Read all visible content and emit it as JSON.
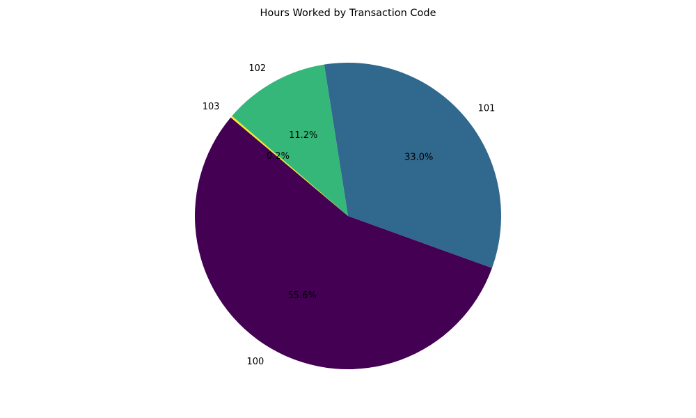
{
  "chart_data": {
    "type": "pie",
    "title": "Hours Worked by Transaction Code",
    "categories": [
      "100",
      "101",
      "102",
      "103"
    ],
    "values": [
      55.6,
      33.0,
      11.2,
      0.2
    ],
    "percent_labels": [
      "55.6%",
      "33.0%",
      "11.2%",
      "0.2%"
    ],
    "colors": [
      "#440154",
      "#31688e",
      "#35b779",
      "#fde725"
    ],
    "start_angle_deg": 140,
    "direction": "counterclockwise",
    "legend": "none"
  }
}
